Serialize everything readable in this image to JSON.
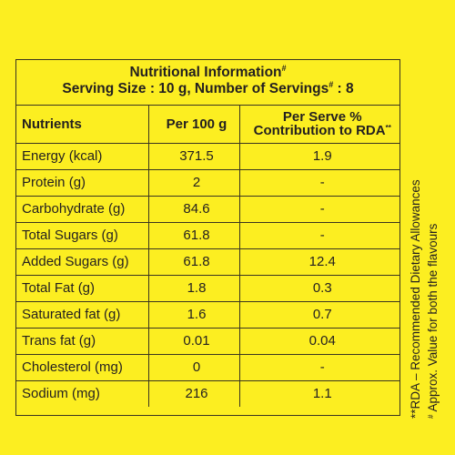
{
  "header": {
    "title": "Nutritional Information",
    "title_mark": "#",
    "serving_line_prefix": "Serving Size : 10 g, Number of Servings",
    "serving_mark": "#",
    "serving_line_suffix": " : 8"
  },
  "table": {
    "columns": {
      "nutrients": "Nutrients",
      "per_100g": "Per 100 g",
      "rda_line1": "Per Serve %",
      "rda_line2": "Contribution to RDA",
      "rda_mark": "**"
    },
    "rows": [
      {
        "nutrient": "Energy (kcal)",
        "per_100g": "371.5",
        "rda": "1.9"
      },
      {
        "nutrient": "Protein (g)",
        "per_100g": "2",
        "rda": "-"
      },
      {
        "nutrient": "Carbohydrate (g)",
        "per_100g": "84.6",
        "rda": "-"
      },
      {
        "nutrient": "Total Sugars (g)",
        "per_100g": "61.8",
        "rda": "-"
      },
      {
        "nutrient": "Added Sugars (g)",
        "per_100g": "61.8",
        "rda": "12.4"
      },
      {
        "nutrient": "Total Fat (g)",
        "per_100g": "1.8",
        "rda": "0.3"
      },
      {
        "nutrient": "Saturated fat (g)",
        "per_100g": "1.6",
        "rda": "0.7"
      },
      {
        "nutrient": "Trans fat (g)",
        "per_100g": "0.01",
        "rda": "0.04"
      },
      {
        "nutrient": "Cholesterol (mg)",
        "per_100g": "0",
        "rda": "-"
      },
      {
        "nutrient": "Sodium (mg)",
        "per_100g": "216",
        "rda": "1.1"
      }
    ]
  },
  "footnotes": {
    "rda_note": "**RDA – Recommended Dietary Allowances",
    "approx_mark": "#",
    "approx_note": " Approx. Value for both the flavours"
  },
  "colors": {
    "background": "#fcee21",
    "text": "#231f20",
    "rule": "#3a3520"
  }
}
